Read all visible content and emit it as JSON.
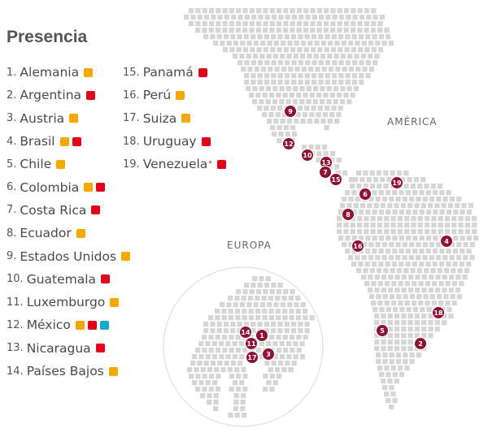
{
  "title": "Presencia",
  "colors": {
    "orange": "#f5a800",
    "red": "#e2001a",
    "cyan": "#17a9c9",
    "marker": "#8e1232",
    "dot": "#d6d6d6",
    "circle_stroke": "#e0e0e0"
  },
  "regions": {
    "america": "AMÉRICA",
    "europe": "EUROPA"
  },
  "legend_col1": [
    {
      "num": "1.",
      "name": "Alemania",
      "sw": [
        "orange"
      ]
    },
    {
      "num": "2.",
      "name": "Argentina",
      "sw": [
        "red"
      ]
    },
    {
      "num": "3.",
      "name": "Austria",
      "sw": [
        "orange"
      ]
    },
    {
      "num": "4.",
      "name": "Brasil",
      "sw": [
        "orange",
        "red"
      ]
    },
    {
      "num": "5.",
      "name": "Chile",
      "sw": [
        "orange"
      ]
    },
    {
      "num": "6.",
      "name": "Colombia",
      "sw": [
        "orange",
        "red"
      ]
    },
    {
      "num": "7.",
      "name": "Costa Rica",
      "sw": [
        "red"
      ]
    },
    {
      "num": "8.",
      "name": "Ecuador",
      "sw": [
        "orange"
      ]
    },
    {
      "num": "9.",
      "name": "Estados Unidos",
      "sw": [
        "orange"
      ]
    },
    {
      "num": "10.",
      "name": "Guatemala",
      "sw": [
        "red"
      ]
    },
    {
      "num": "11.",
      "name": "Luxemburgo",
      "sw": [
        "orange"
      ]
    },
    {
      "num": "12.",
      "name": "México",
      "sw": [
        "orange",
        "red",
        "cyan"
      ]
    },
    {
      "num": "13.",
      "name": "Nicaragua",
      "sw": [
        "red"
      ]
    },
    {
      "num": "14.",
      "name": "Países Bajos",
      "sw": [
        "orange"
      ]
    }
  ],
  "legend_col2": [
    {
      "num": "15.",
      "name": "Panamá",
      "sw": [
        "red"
      ]
    },
    {
      "num": "16.",
      "name": "Perú",
      "sw": [
        "orange"
      ]
    },
    {
      "num": "17.",
      "name": "Suiza",
      "sw": [
        "orange"
      ]
    },
    {
      "num": "18.",
      "name": "Uruguay",
      "sw": [
        "red"
      ]
    },
    {
      "num": "19.",
      "name": "Venezuela",
      "ast": "*",
      "sw": [
        "red"
      ]
    }
  ],
  "markers": [
    "9",
    "12",
    "10",
    "13",
    "7",
    "15",
    "19",
    "6",
    "8",
    "16",
    "4",
    "18",
    "5",
    "2",
    "14",
    "1",
    "11",
    "3",
    "17"
  ]
}
